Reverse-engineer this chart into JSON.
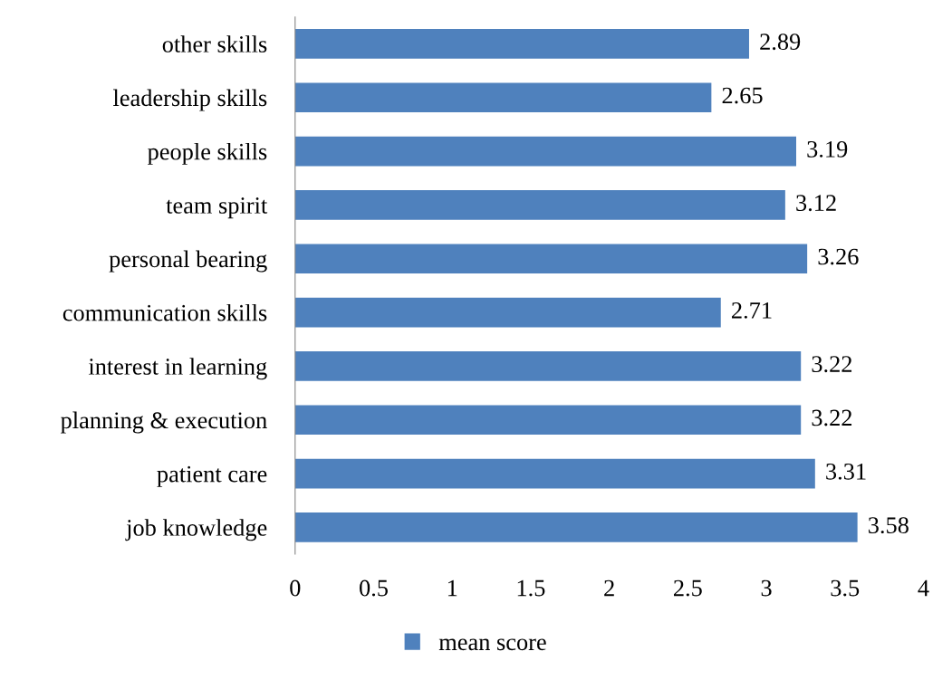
{
  "chart_data": {
    "type": "bar",
    "orientation": "horizontal",
    "categories": [
      "other skills",
      "leadership skills",
      "people skills",
      "team spirit",
      "personal bearing",
      "communication skills",
      "interest in learning",
      "planning & execution",
      "patient care",
      "job knowledge"
    ],
    "series": [
      {
        "name": "mean score",
        "color": "#4f81bd",
        "values": [
          2.89,
          2.65,
          3.19,
          3.12,
          3.26,
          2.71,
          3.22,
          3.22,
          3.31,
          3.58
        ]
      }
    ],
    "xlim": [
      0,
      4
    ],
    "xticks": [
      0,
      0.5,
      1,
      1.5,
      2,
      2.5,
      3,
      3.5,
      4
    ],
    "data_labels": true,
    "grid": false,
    "legend": "bottom"
  }
}
